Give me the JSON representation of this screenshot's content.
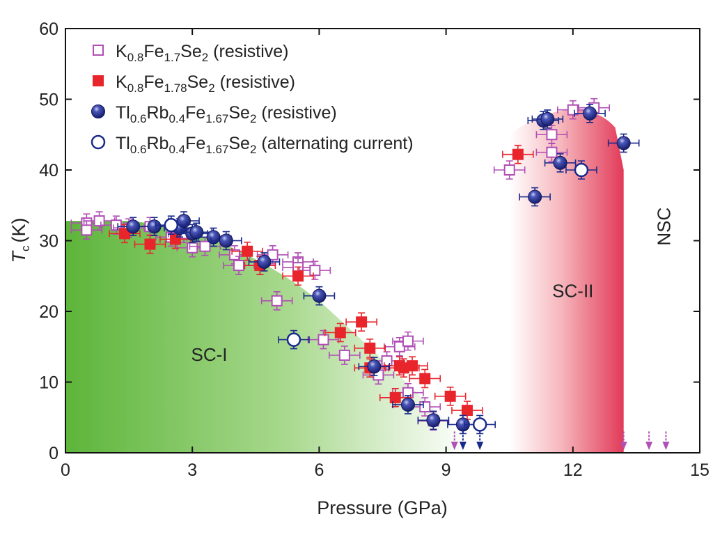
{
  "chart_data": {
    "type": "scatter",
    "title": "",
    "xlabel": "Pressure (GPa)",
    "ylabel": {
      "main": "T",
      "sub": "c",
      "unit": "(K)"
    },
    "xlim": [
      0,
      15
    ],
    "ylim": [
      0,
      60
    ],
    "xticks": [
      0,
      3,
      6,
      9,
      12,
      15
    ],
    "yticks": [
      0,
      10,
      20,
      30,
      40,
      50,
      60
    ],
    "grid": false,
    "legend_position": "top-left",
    "colors": {
      "magenta": "#b04fb5",
      "red": "#e8252b",
      "navy": "#1a2a8c",
      "green": "#5db53a",
      "pink": "#e23a58"
    },
    "regions": [
      {
        "name": "SC-I",
        "label": "SC-I",
        "label_x": 3.4,
        "label_y": 13
      },
      {
        "name": "SC-II",
        "label": "SC-II",
        "label_x": 12.0,
        "label_y": 22
      },
      {
        "name": "NSC",
        "label": "NSC",
        "label_x": 14.3,
        "label_y": 32,
        "rotated": true
      }
    ],
    "series": [
      {
        "name": "K0.8Fe1.7Se2 (resistive)",
        "label_parts": [
          [
            "K",
            ""
          ],
          [
            "0.8",
            "sub"
          ],
          [
            "Fe",
            ""
          ],
          [
            "1.7",
            "sub"
          ],
          [
            "Se",
            ""
          ],
          [
            "2",
            "sub"
          ],
          [
            " (resistive)",
            ""
          ]
        ],
        "marker": "square-open",
        "color": "#b04fb5",
        "points": [
          [
            0.5,
            32.5
          ],
          [
            0.5,
            31.5
          ],
          [
            0.8,
            32.8
          ],
          [
            1.2,
            32.2
          ],
          [
            1.5,
            31.8
          ],
          [
            2.0,
            32.0
          ],
          [
            2.5,
            30.5
          ],
          [
            2.8,
            31.0
          ],
          [
            3.0,
            29.0
          ],
          [
            3.3,
            29.2
          ],
          [
            3.8,
            30.0
          ],
          [
            4.0,
            28.0
          ],
          [
            4.1,
            26.5
          ],
          [
            4.6,
            26.5
          ],
          [
            4.9,
            28.0
          ],
          [
            5.0,
            21.5
          ],
          [
            5.5,
            27.0
          ],
          [
            5.5,
            26.2
          ],
          [
            5.9,
            25.8
          ],
          [
            6.1,
            16.0
          ],
          [
            6.6,
            13.8
          ],
          [
            7.4,
            11.0
          ],
          [
            7.6,
            13.0
          ],
          [
            7.9,
            15.0
          ],
          [
            8.1,
            15.8
          ],
          [
            8.1,
            8.5
          ],
          [
            8.5,
            6.5
          ],
          [
            8.7,
            4.5
          ],
          [
            10.5,
            40.0
          ],
          [
            11.5,
            45.0
          ],
          [
            11.5,
            42.5
          ],
          [
            12.0,
            48.5
          ],
          [
            12.5,
            48.8
          ]
        ]
      },
      {
        "name": "K0.8Fe1.78Se2 (resistive)",
        "label_parts": [
          [
            "K",
            ""
          ],
          [
            "0.8",
            "sub"
          ],
          [
            "Fe",
            ""
          ],
          [
            "1.78",
            "sub"
          ],
          [
            "Se",
            ""
          ],
          [
            "2",
            "sub"
          ],
          [
            " (resistive)",
            ""
          ]
        ],
        "marker": "square-filled",
        "color": "#e8252b",
        "points": [
          [
            1.4,
            31.0
          ],
          [
            2.0,
            29.5
          ],
          [
            2.6,
            30.2
          ],
          [
            4.3,
            28.5
          ],
          [
            4.6,
            26.5
          ],
          [
            5.5,
            25.0
          ],
          [
            6.5,
            17.0
          ],
          [
            7.0,
            18.5
          ],
          [
            7.2,
            14.8
          ],
          [
            7.2,
            12.0
          ],
          [
            7.8,
            7.8
          ],
          [
            7.9,
            12.3
          ],
          [
            8.0,
            12.0
          ],
          [
            8.2,
            12.3
          ],
          [
            8.5,
            10.5
          ],
          [
            9.1,
            8.0
          ],
          [
            9.5,
            6.0
          ],
          [
            10.7,
            42.2
          ]
        ]
      },
      {
        "name": "Tl0.6Rb0.4Fe1.67Se2 (resistive)",
        "label_parts": [
          [
            "Tl",
            ""
          ],
          [
            "0.6",
            "sub"
          ],
          [
            "Rb",
            ""
          ],
          [
            "0.4",
            "sub"
          ],
          [
            "Fe",
            ""
          ],
          [
            "1.67",
            "sub"
          ],
          [
            "Se",
            ""
          ],
          [
            "2",
            "sub"
          ],
          [
            " (resistive)",
            ""
          ]
        ],
        "marker": "circle-filled",
        "color": "#1a2a8c",
        "points": [
          [
            1.6,
            32.0
          ],
          [
            2.1,
            32.0
          ],
          [
            2.7,
            31.8
          ],
          [
            2.8,
            32.8
          ],
          [
            3.0,
            31.0
          ],
          [
            3.1,
            31.2
          ],
          [
            3.5,
            30.5
          ],
          [
            3.8,
            30.0
          ],
          [
            4.7,
            27.0
          ],
          [
            6.0,
            22.2
          ],
          [
            7.3,
            12.2
          ],
          [
            8.1,
            6.8
          ],
          [
            8.7,
            4.6
          ],
          [
            9.4,
            4.0
          ],
          [
            11.1,
            36.2
          ],
          [
            11.3,
            47.0
          ],
          [
            11.4,
            47.2
          ],
          [
            11.7,
            41.0
          ],
          [
            12.4,
            48.0
          ],
          [
            13.2,
            43.8
          ]
        ]
      },
      {
        "name": "Tl0.6Rb0.4Fe1.67Se2 (alternating current)",
        "label_parts": [
          [
            "Tl",
            ""
          ],
          [
            "0.6",
            "sub"
          ],
          [
            "Rb",
            ""
          ],
          [
            "0.4",
            "sub"
          ],
          [
            "Fe",
            ""
          ],
          [
            "1.67",
            "sub"
          ],
          [
            "Se",
            ""
          ],
          [
            "2",
            "sub"
          ],
          [
            " (alternating current)",
            ""
          ]
        ],
        "marker": "circle-open",
        "color": "#1a2a8c",
        "points": [
          [
            2.5,
            32.2
          ],
          [
            5.4,
            16.0
          ],
          [
            9.8,
            4.0
          ],
          [
            12.2,
            40.0
          ]
        ]
      },
      {
        "name": "upper-limit markers",
        "marker": "arrow-down",
        "points": [
          [
            9.2,
            4.0,
            "#b04fb5"
          ],
          [
            9.4,
            4.0,
            "#1a2a8c"
          ],
          [
            9.8,
            4.0,
            "#1a2a8c"
          ],
          [
            13.2,
            4.0,
            "#b04fb5"
          ],
          [
            13.8,
            4.0,
            "#b04fb5"
          ],
          [
            14.2,
            4.0,
            "#b04fb5"
          ]
        ]
      }
    ]
  }
}
